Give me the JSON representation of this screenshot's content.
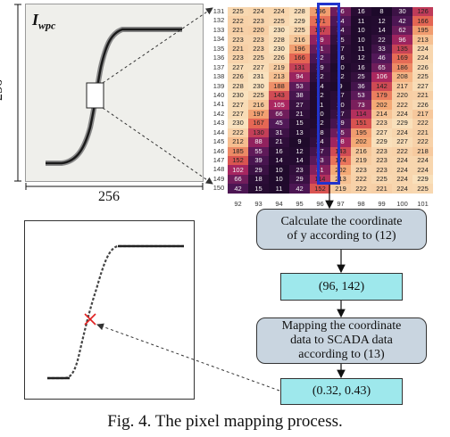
{
  "image_top": {
    "label_main": "I",
    "label_sub": "wpc",
    "dim_vertical": "256",
    "dim_horizontal": "256"
  },
  "heatmap": {
    "row_labels": [
      "131",
      "132",
      "133",
      "134",
      "135",
      "136",
      "137",
      "138",
      "139",
      "140",
      "141",
      "142",
      "143",
      "144",
      "145",
      "146",
      "147",
      "148",
      "149",
      "150"
    ],
    "col_labels": [
      "92",
      "93",
      "94",
      "95",
      "96",
      "97",
      "98",
      "99",
      "100",
      "101"
    ],
    "rows": [
      [
        "225",
        "224",
        "224",
        "228",
        "196",
        "66",
        "16",
        "8",
        "30",
        "126"
      ],
      [
        "222",
        "223",
        "225",
        "229",
        "171",
        "44",
        "11",
        "12",
        "42",
        "166"
      ],
      [
        "221",
        "220",
        "230",
        "225",
        "137",
        "34",
        "10",
        "14",
        "62",
        "195"
      ],
      [
        "223",
        "223",
        "228",
        "216",
        "89",
        "25",
        "10",
        "22",
        "96",
        "213"
      ],
      [
        "221",
        "223",
        "230",
        "196",
        "61",
        "17",
        "11",
        "33",
        "135",
        "224"
      ],
      [
        "223",
        "225",
        "226",
        "166",
        "42",
        "16",
        "12",
        "46",
        "169",
        "224"
      ],
      [
        "227",
        "227",
        "219",
        "131",
        "29",
        "10",
        "16",
        "65",
        "186",
        "226"
      ],
      [
        "226",
        "231",
        "213",
        "94",
        "22",
        "12",
        "25",
        "106",
        "208",
        "225"
      ],
      [
        "228",
        "230",
        "188",
        "53",
        "14",
        "9",
        "36",
        "142",
        "217",
        "227"
      ],
      [
        "230",
        "225",
        "143",
        "38",
        "12",
        "17",
        "53",
        "179",
        "220",
        "221"
      ],
      [
        "227",
        "216",
        "105",
        "27",
        "11",
        "20",
        "73",
        "202",
        "222",
        "226"
      ],
      [
        "227",
        "197",
        "66",
        "21",
        "10",
        "27",
        "114",
        "214",
        "224",
        "217"
      ],
      [
        "230",
        "167",
        "45",
        "15",
        "12",
        "39",
        "151",
        "223",
        "229",
        "222"
      ],
      [
        "222",
        "130",
        "31",
        "13",
        "18",
        "65",
        "195",
        "227",
        "224",
        "221"
      ],
      [
        "212",
        "88",
        "21",
        "9",
        "24",
        "98",
        "202",
        "229",
        "227",
        "222"
      ],
      [
        "185",
        "55",
        "16",
        "12",
        "37",
        "143",
        "216",
        "223",
        "222",
        "218"
      ],
      [
        "152",
        "39",
        "14",
        "14",
        "53",
        "174",
        "219",
        "223",
        "224",
        "224"
      ],
      [
        "102",
        "29",
        "10",
        "23",
        "81",
        "202",
        "223",
        "223",
        "224",
        "224"
      ],
      [
        "66",
        "18",
        "10",
        "29",
        "114",
        "213",
        "222",
        "225",
        "224",
        "229"
      ],
      [
        "42",
        "15",
        "11",
        "42",
        "152",
        "219",
        "222",
        "221",
        "224",
        "225"
      ]
    ]
  },
  "flow": {
    "calc_line1": "Calculate the coordinate",
    "calc_line2": "of y according to (12)",
    "result1": "(96, 142)",
    "map_line1": "Mapping the coordinate",
    "map_line2": "data to SCADA data",
    "map_line3": "according to (13)",
    "result2": "(0.32, 0.43)"
  },
  "caption": "Fig. 4. The pixel mapping process."
}
